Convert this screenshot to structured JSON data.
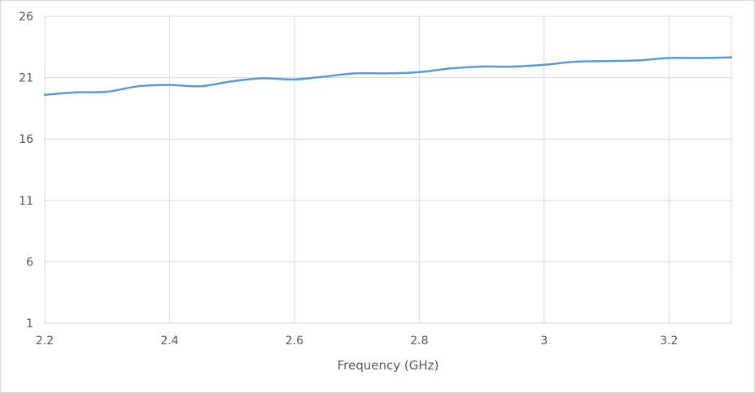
{
  "chart_data": {
    "type": "line",
    "title": "",
    "xlabel": "Frequency (GHz)",
    "ylabel": "",
    "xlim": [
      2.2,
      3.3
    ],
    "ylim": [
      1,
      26
    ],
    "x_ticks": [
      2.2,
      2.4,
      2.6,
      2.8,
      3.0,
      3.2
    ],
    "x_tick_labels": [
      "2.2",
      "2.4",
      "2.6",
      "2.8",
      "3",
      "3.2"
    ],
    "y_ticks": [
      1,
      6,
      11,
      16,
      21,
      26
    ],
    "y_tick_labels": [
      "1",
      "6",
      "11",
      "16",
      "21",
      "26"
    ],
    "grid": true,
    "legend": "none",
    "line_color": "#5b9bd5",
    "grid_color": "#d9d9d9",
    "series": [
      {
        "x": [
          2.2,
          2.25,
          2.3,
          2.35,
          2.4,
          2.45,
          2.5,
          2.55,
          2.6,
          2.65,
          2.7,
          2.75,
          2.8,
          2.85,
          2.9,
          2.95,
          3.0,
          3.05,
          3.1,
          3.15,
          3.2,
          3.25,
          3.3
        ],
        "y": [
          19.6,
          19.8,
          19.85,
          20.3,
          20.4,
          20.3,
          20.7,
          20.95,
          20.85,
          21.1,
          21.35,
          21.35,
          21.45,
          21.75,
          21.9,
          21.9,
          22.05,
          22.3,
          22.35,
          22.4,
          22.6,
          22.6,
          22.65
        ]
      }
    ]
  }
}
